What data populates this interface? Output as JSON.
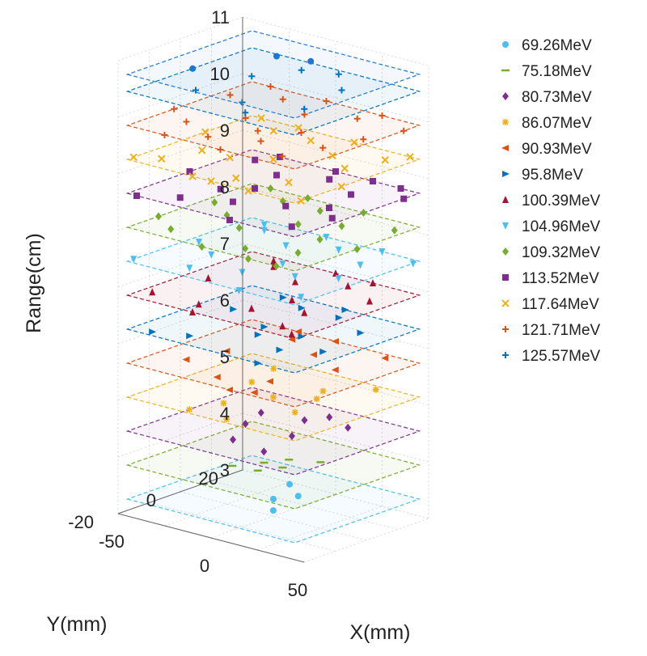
{
  "chart_data": {
    "type": "scatter",
    "projection": "3d",
    "xlabel": "X(mm)",
    "ylabel": "Y(mm)",
    "zlabel": "Range(cm)",
    "xlim": [
      -50,
      50
    ],
    "ylim": [
      -20,
      20
    ],
    "zlim": [
      3,
      11
    ],
    "x_ticks": [
      "-50",
      "0",
      "50"
    ],
    "y_ticks": [
      "-20",
      "0",
      "20"
    ],
    "z_ticks": [
      "3",
      "4",
      "5",
      "6",
      "7",
      "8",
      "9",
      "10",
      "11"
    ],
    "grid": true,
    "legend_position": "right",
    "series": [
      {
        "name": "69.26MeV",
        "marker": "circle",
        "color": "#4DBEEE",
        "range": 3.3,
        "points": [
          [
            0,
            0
          ],
          [
            5,
            5
          ],
          [
            -8,
            10
          ],
          [
            10,
            -6
          ]
        ]
      },
      {
        "name": "75.18MeV",
        "marker": "dash",
        "color": "#77AC30",
        "range": 3.9,
        "points": [
          [
            -5,
            0
          ],
          [
            0,
            5
          ],
          [
            5,
            0
          ],
          [
            0,
            -5
          ],
          [
            12,
            8
          ],
          [
            -12,
            -6
          ]
        ]
      },
      {
        "name": "80.73MeV",
        "marker": "diamond",
        "color": "#7E2F8E",
        "range": 4.5,
        "points": [
          [
            -15,
            0
          ],
          [
            0,
            10
          ],
          [
            10,
            0
          ],
          [
            -5,
            -10
          ],
          [
            20,
            12
          ],
          [
            -20,
            8
          ],
          [
            5,
            15
          ],
          [
            15,
            -12
          ]
        ]
      },
      {
        "name": "86.07MeV",
        "marker": "star",
        "color": "#EDB120",
        "range": 5.1,
        "points": [
          [
            -20,
            5
          ],
          [
            -10,
            -10
          ],
          [
            0,
            0
          ],
          [
            10,
            10
          ],
          [
            20,
            -5
          ],
          [
            -25,
            15
          ],
          [
            25,
            18
          ],
          [
            5,
            -18
          ],
          [
            15,
            5
          ],
          [
            -15,
            -18
          ]
        ]
      },
      {
        "name": "90.93MeV",
        "marker": "triangle-left",
        "color": "#D95319",
        "range": 5.7,
        "points": [
          [
            -25,
            0
          ],
          [
            -15,
            15
          ],
          [
            -5,
            -15
          ],
          [
            5,
            10
          ],
          [
            15,
            -10
          ],
          [
            25,
            5
          ],
          [
            -30,
            -10
          ],
          [
            30,
            18
          ],
          [
            0,
            20
          ],
          [
            10,
            -20
          ],
          [
            -20,
            20
          ],
          [
            20,
            -18
          ]
        ]
      },
      {
        "name": "95.8MeV",
        "marker": "triangle-right",
        "color": "#0072BD",
        "range": 6.3,
        "points": [
          [
            -30,
            5
          ],
          [
            -20,
            -15
          ],
          [
            -10,
            15
          ],
          [
            0,
            -5
          ],
          [
            10,
            15
          ],
          [
            20,
            -10
          ],
          [
            30,
            10
          ],
          [
            -35,
            -18
          ],
          [
            35,
            -5
          ],
          [
            5,
            20
          ],
          [
            -5,
            0
          ],
          [
            15,
            0
          ],
          [
            -25,
            18
          ],
          [
            25,
            -20
          ]
        ]
      },
      {
        "name": "100.39MeV",
        "marker": "triangle-up",
        "color": "#A2142F",
        "range": 6.9,
        "points": [
          [
            -35,
            0
          ],
          [
            -25,
            15
          ],
          [
            -15,
            -15
          ],
          [
            -5,
            10
          ],
          [
            5,
            -10
          ],
          [
            15,
            15
          ],
          [
            25,
            -5
          ],
          [
            35,
            10
          ],
          [
            -40,
            -15
          ],
          [
            40,
            -18
          ],
          [
            0,
            20
          ],
          [
            -10,
            -20
          ],
          [
            20,
            20
          ],
          [
            30,
            -15
          ],
          [
            -30,
            18
          ],
          [
            10,
            0
          ]
        ]
      },
      {
        "name": "104.96MeV",
        "marker": "triangle-down",
        "color": "#4DBEEE",
        "range": 7.5,
        "points": [
          [
            -40,
            0
          ],
          [
            -30,
            15
          ],
          [
            -20,
            -15
          ],
          [
            -10,
            10
          ],
          [
            0,
            -10
          ],
          [
            10,
            15
          ],
          [
            20,
            -5
          ],
          [
            30,
            10
          ],
          [
            40,
            -15
          ],
          [
            -45,
            -18
          ],
          [
            45,
            18
          ],
          [
            -5,
            20
          ],
          [
            15,
            -20
          ],
          [
            25,
            20
          ],
          [
            -25,
            -5
          ],
          [
            35,
            0
          ],
          [
            -35,
            18
          ],
          [
            5,
            0
          ]
        ]
      },
      {
        "name": "109.32MeV",
        "marker": "diamond",
        "color": "#77AC30",
        "range": 8.1,
        "points": [
          [
            -40,
            5
          ],
          [
            -30,
            -15
          ],
          [
            -20,
            15
          ],
          [
            -10,
            -5
          ],
          [
            0,
            15
          ],
          [
            10,
            -15
          ],
          [
            20,
            10
          ],
          [
            30,
            -10
          ],
          [
            40,
            15
          ],
          [
            -45,
            -10
          ],
          [
            45,
            0
          ],
          [
            -5,
            -20
          ],
          [
            15,
            20
          ],
          [
            25,
            0
          ],
          [
            -25,
            0
          ],
          [
            35,
            -20
          ],
          [
            -35,
            20
          ],
          [
            5,
            5
          ],
          [
            -15,
            20
          ],
          [
            20,
            -20
          ]
        ]
      },
      {
        "name": "113.52MeV",
        "marker": "square",
        "color": "#7E2F8E",
        "range": 8.7,
        "points": [
          [
            -45,
            0
          ],
          [
            -35,
            15
          ],
          [
            -25,
            -15
          ],
          [
            -15,
            10
          ],
          [
            -5,
            -10
          ],
          [
            5,
            15
          ],
          [
            15,
            -5
          ],
          [
            25,
            10
          ],
          [
            35,
            -15
          ],
          [
            45,
            15
          ],
          [
            -40,
            -20
          ],
          [
            40,
            -5
          ],
          [
            0,
            20
          ],
          [
            -10,
            0
          ],
          [
            10,
            -20
          ],
          [
            20,
            20
          ],
          [
            30,
            0
          ],
          [
            -30,
            20
          ],
          [
            -20,
            -5
          ],
          [
            35,
            20
          ]
        ]
      },
      {
        "name": "117.64MeV",
        "marker": "x",
        "color": "#EDB120",
        "range": 9.3,
        "points": [
          [
            -45,
            5
          ],
          [
            -35,
            -15
          ],
          [
            -25,
            15
          ],
          [
            -15,
            -5
          ],
          [
            -5,
            15
          ],
          [
            5,
            -15
          ],
          [
            15,
            10
          ],
          [
            25,
            -10
          ],
          [
            35,
            15
          ],
          [
            45,
            -5
          ],
          [
            -40,
            20
          ],
          [
            40,
            20
          ],
          [
            0,
            0
          ],
          [
            -10,
            -20
          ],
          [
            10,
            20
          ],
          [
            20,
            -20
          ],
          [
            30,
            5
          ],
          [
            -30,
            -5
          ],
          [
            -20,
            20
          ],
          [
            45,
            -18
          ],
          [
            -45,
            -18
          ],
          [
            0,
            -20
          ]
        ]
      },
      {
        "name": "121.71MeV",
        "marker": "plus",
        "color": "#D95319",
        "range": 9.9,
        "points": [
          [
            -40,
            10
          ],
          [
            -30,
            -10
          ],
          [
            -20,
            15
          ],
          [
            -10,
            -15
          ],
          [
            0,
            10
          ],
          [
            10,
            -10
          ],
          [
            20,
            15
          ],
          [
            30,
            -15
          ],
          [
            40,
            5
          ],
          [
            -45,
            -5
          ],
          [
            45,
            15
          ],
          [
            -5,
            20
          ],
          [
            5,
            -20
          ],
          [
            15,
            0
          ],
          [
            -15,
            0
          ],
          [
            25,
            20
          ],
          [
            -25,
            -20
          ],
          [
            35,
            -5
          ],
          [
            -35,
            20
          ],
          [
            0,
            -5
          ]
        ]
      },
      {
        "name": "125.57MeV",
        "marker": "plus",
        "color": "#0072BD",
        "range": 10.5,
        "points": [
          [
            -20,
            5
          ],
          [
            0,
            -10
          ],
          [
            20,
            10
          ],
          [
            -10,
            15
          ],
          [
            10,
            -15
          ],
          [
            25,
            -5
          ],
          [
            -25,
            -10
          ],
          [
            5,
            18
          ]
        ]
      }
    ],
    "series_decoration": {
      "69.26MeV": {
        "marker": "circle",
        "color": "#1F77D0",
        "range": 10.8,
        "points": [
          [
            -15,
            10
          ],
          [
            0,
            12
          ],
          [
            -30,
            -8
          ]
        ]
      }
    }
  }
}
